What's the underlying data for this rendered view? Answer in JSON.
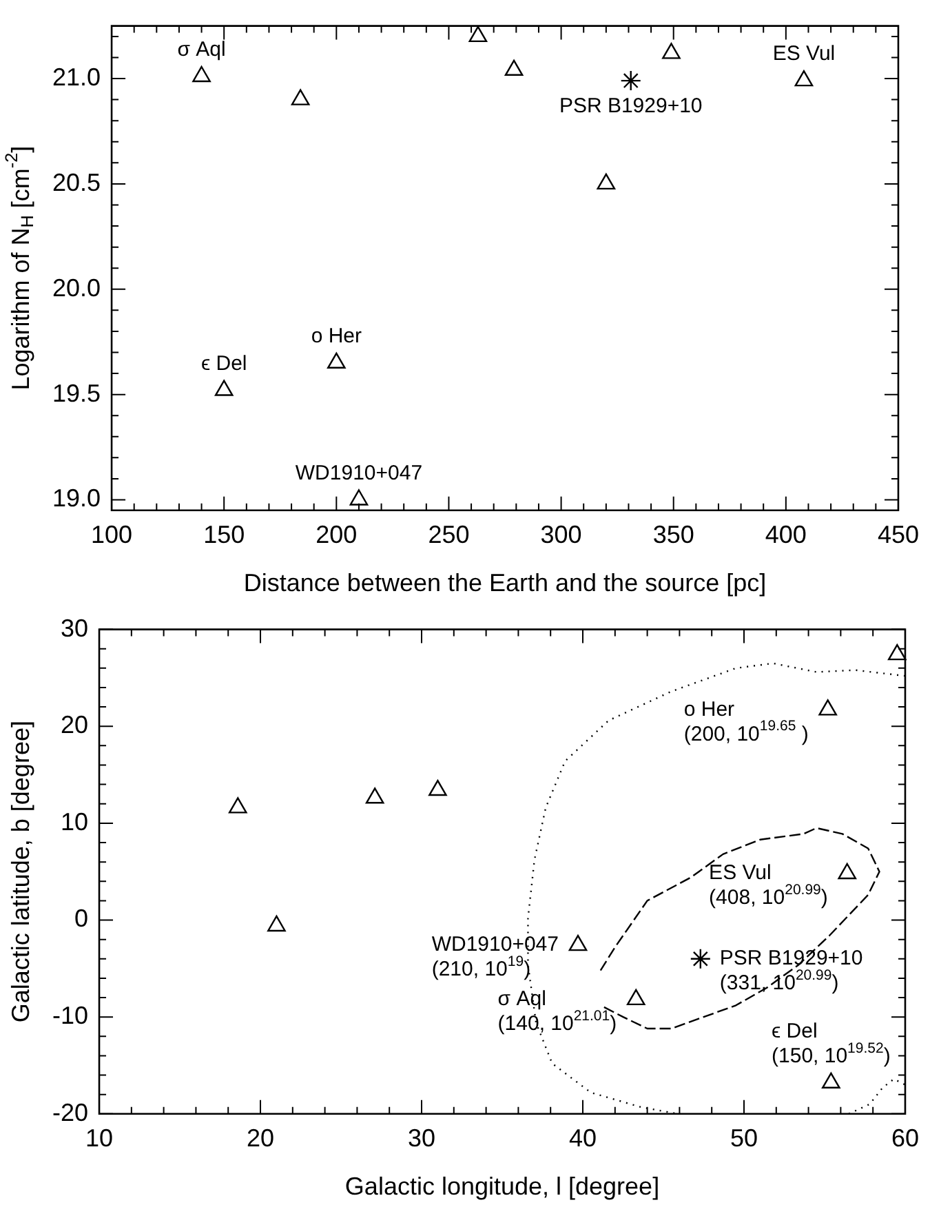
{
  "chart_data": [
    {
      "type": "scatter",
      "xlabel": "Distance between the Earth and the source [pc]",
      "ylabel": "Logarithm of N$_{H}$ [cm$^{-2}$]",
      "xlim": [
        100,
        450
      ],
      "xticks": [
        100,
        {
          "value": 110,
          "label": null
        },
        {
          "value": 120,
          "label": null
        },
        {
          "value": 130,
          "label": null
        },
        {
          "value": 140,
          "label": null
        },
        150,
        {
          "value": 160,
          "label": null
        },
        {
          "value": 170,
          "label": null
        },
        {
          "value": 180,
          "label": null
        },
        {
          "value": 190,
          "label": null
        },
        200,
        {
          "value": 210,
          "label": null
        },
        {
          "value": 220,
          "label": null
        },
        {
          "value": 230,
          "label": null
        },
        {
          "value": 240,
          "label": null
        },
        250,
        {
          "value": 260,
          "label": null
        },
        {
          "value": 270,
          "label": null
        },
        {
          "value": 280,
          "label": null
        },
        {
          "value": 290,
          "label": null
        },
        300,
        {
          "value": 310,
          "label": null
        },
        {
          "value": 320,
          "label": null
        },
        {
          "value": 330,
          "label": null
        },
        {
          "value": 340,
          "label": null
        },
        350,
        {
          "value": 360,
          "label": null
        },
        {
          "value": 370,
          "label": null
        },
        {
          "value": 380,
          "label": null
        },
        {
          "value": 390,
          "label": null
        },
        400,
        {
          "value": 410,
          "label": null
        },
        {
          "value": 420,
          "label": null
        },
        {
          "value": 430,
          "label": null
        },
        {
          "value": 440,
          "label": null
        },
        450
      ],
      "ylim": [
        18.95,
        21.25
      ],
      "yticks": [
        {
          "value": 19,
          "label": "19.0"
        },
        {
          "value": 19.1,
          "label": null
        },
        {
          "value": 19.2,
          "label": null
        },
        {
          "value": 19.3,
          "label": null
        },
        {
          "value": 19.4,
          "label": null
        },
        19.5,
        {
          "value": 19.6,
          "label": null
        },
        {
          "value": 19.7,
          "label": null
        },
        {
          "value": 19.8,
          "label": null
        },
        {
          "value": 19.9,
          "label": null
        },
        {
          "value": 20,
          "label": "20.0"
        },
        {
          "value": 20.1,
          "label": null
        },
        {
          "value": 20.2,
          "label": null
        },
        {
          "value": 20.3,
          "label": null
        },
        {
          "value": 20.4,
          "label": null
        },
        20.5,
        {
          "value": 20.6,
          "label": null
        },
        {
          "value": 20.7,
          "label": null
        },
        {
          "value": 20.8,
          "label": null
        },
        {
          "value": 20.9,
          "label": null
        },
        {
          "value": 21,
          "label": "21.0"
        },
        {
          "value": 21.1,
          "label": null
        },
        {
          "value": 21.2,
          "label": null
        }
      ],
      "grid": false,
      "legend": false,
      "series": [
        {
          "type": "scatter",
          "marker": "triangle",
          "color": "#000000",
          "x": [
            140,
            184,
            150,
            200,
            210,
            263,
            279,
            320,
            349,
            408
          ],
          "values": [
            21.01,
            20.9,
            19.52,
            19.65,
            19.0,
            21.2,
            21.04,
            20.5,
            21.12,
            20.99
          ]
        },
        {
          "type": "scatter",
          "marker": "cross",
          "color": "#000000",
          "x": [
            331
          ],
          "values": [
            20.99
          ]
        }
      ],
      "annotations": [
        {
          "text": "σ Aql",
          "x": 140,
          "y": 21.01
        },
        {
          "text": "ϵ Del",
          "x": 150,
          "y": 19.52
        },
        {
          "text": "o Her",
          "x": 200,
          "y": 19.65
        },
        {
          "text": "WD1910+047",
          "x": 210,
          "y": 19.0
        },
        {
          "text": "PSR B1929+10",
          "x": 331,
          "y": 20.99
        },
        {
          "text": "ES Vul",
          "x": 408,
          "y": 20.99
        }
      ]
    },
    {
      "type": "scatter",
      "xlabel": "Galactic longitude, l [degree]",
      "ylabel": "Galactic latitude, b [degree]",
      "xlim": [
        10,
        60
      ],
      "xticks": [
        10,
        {
          "value": 12,
          "label": null
        },
        {
          "value": 14,
          "label": null
        },
        {
          "value": 16,
          "label": null
        },
        {
          "value": 18,
          "label": null
        },
        20,
        {
          "value": 22,
          "label": null
        },
        {
          "value": 24,
          "label": null
        },
        {
          "value": 26,
          "label": null
        },
        {
          "value": 28,
          "label": null
        },
        30,
        {
          "value": 32,
          "label": null
        },
        {
          "value": 34,
          "label": null
        },
        {
          "value": 36,
          "label": null
        },
        {
          "value": 38,
          "label": null
        },
        40,
        {
          "value": 42,
          "label": null
        },
        {
          "value": 44,
          "label": null
        },
        {
          "value": 46,
          "label": null
        },
        {
          "value": 48,
          "label": null
        },
        50,
        {
          "value": 52,
          "label": null
        },
        {
          "value": 54,
          "label": null
        },
        {
          "value": 56,
          "label": null
        },
        {
          "value": 58,
          "label": null
        },
        60
      ],
      "ylim": [
        -20,
        30
      ],
      "yticks": [
        -20,
        {
          "value": -18,
          "label": null
        },
        {
          "value": -16,
          "label": null
        },
        {
          "value": -14,
          "label": null
        },
        {
          "value": -12,
          "label": null
        },
        -10,
        {
          "value": -8,
          "label": null
        },
        {
          "value": -6,
          "label": null
        },
        {
          "value": -4,
          "label": null
        },
        {
          "value": -2,
          "label": null
        },
        0,
        {
          "value": 2,
          "label": null
        },
        {
          "value": 4,
          "label": null
        },
        {
          "value": 6,
          "label": null
        },
        {
          "value": 8,
          "label": null
        },
        10,
        {
          "value": 12,
          "label": null
        },
        {
          "value": 14,
          "label": null
        },
        {
          "value": 16,
          "label": null
        },
        {
          "value": 18,
          "label": null
        },
        20,
        {
          "value": 22,
          "label": null
        },
        {
          "value": 24,
          "label": null
        },
        {
          "value": 26,
          "label": null
        },
        {
          "value": 28,
          "label": null
        },
        30
      ],
      "grid": false,
      "legend": false,
      "series": [
        {
          "type": "scatter",
          "marker": "triangle",
          "color": "#000000",
          "x": [
            18.6,
            21.0,
            27.1,
            31.0,
            39.7,
            43.3,
            56.4,
            55.2,
            55.4,
            59.5
          ],
          "values": [
            11.6,
            -0.6,
            12.6,
            13.4,
            -2.6,
            -8.2,
            4.8,
            21.7,
            -16.8,
            27.4
          ]
        },
        {
          "type": "scatter",
          "marker": "cross",
          "color": "#000000",
          "x": [
            47.3
          ],
          "values": [
            -4.0
          ]
        },
        {
          "type": "line",
          "marker": "none",
          "line_style": "dotted",
          "color": "#000000",
          "x": [
            60,
            56.9,
            54.5,
            51.8,
            49.5,
            45.5,
            41.6,
            38.9,
            37.7,
            37.0,
            36.6,
            36.6,
            37.1,
            38.1,
            40.5,
            43.6,
            45.9,
            51,
            56.5,
            57.8,
            58.6,
            59.3,
            60
          ],
          "values": [
            25.2,
            25.8,
            25.6,
            26.5,
            26.0,
            23.6,
            20.6,
            16.4,
            11.6,
            6.2,
            0.2,
            -4.6,
            -10.6,
            -14.8,
            -17.8,
            -19.3,
            -20,
            null,
            -20,
            -19,
            -17.3,
            -16.4,
            -17
          ]
        },
        {
          "type": "line",
          "marker": "none",
          "line_style": "dashed",
          "color": "#000000",
          "x": [
            41.1,
            42.0,
            44.0,
            46.7,
            48.7,
            51.0,
            53.7,
            54.5,
            56.1,
            57.7,
            58.4,
            57.7,
            55.3,
            53.4,
            51.4,
            49.5,
            47.5,
            45.5,
            44.0,
            42.5,
            41.1
          ],
          "values": [
            -5.2,
            -2.8,
            2.0,
            4.4,
            6.8,
            8.3,
            8.9,
            9.5,
            8.9,
            7.4,
            5.0,
            2.6,
            -1.6,
            -4.6,
            -7.0,
            -8.8,
            -10.0,
            -11.2,
            -11.2,
            -10.0,
            -8.8
          ]
        }
      ],
      "annotations": [
        {
          "text": "o Her\n(200, 10$^{19.65}$ )",
          "x": 55.2,
          "y": 21.7
        },
        {
          "text": "ES Vul\n(408, 10$^{20.99}$)",
          "x": 56.4,
          "y": 4.8
        },
        {
          "text": "WD1910+047\n(210, 10$^{19}$)",
          "x": 39.7,
          "y": -2.6
        },
        {
          "text": "σ Aql\n(140, 10$^{21.01}$)",
          "x": 43.3,
          "y": -8.2
        },
        {
          "text": "PSR B1929+10\n(331, 10$^{20.99}$)",
          "x": 47.3,
          "y": -4.0
        },
        {
          "text": "ϵ Del\n(150, 10$^{19.52}$)",
          "x": 55.4,
          "y": -16.8
        }
      ]
    }
  ]
}
